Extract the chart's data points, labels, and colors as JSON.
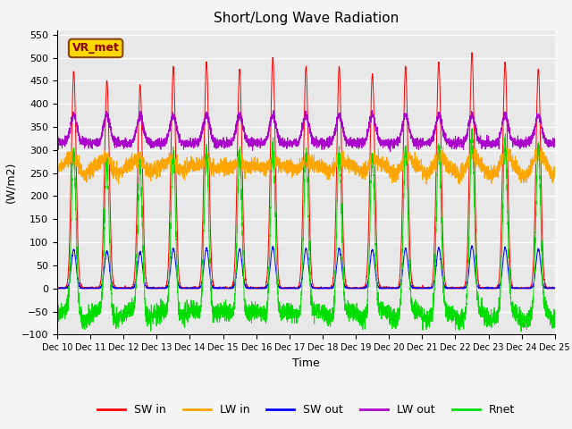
{
  "title": "Short/Long Wave Radiation",
  "xlabel": "Time",
  "ylabel": "(W/m2)",
  "ylim": [
    -100,
    560
  ],
  "yticks": [
    -100,
    -50,
    0,
    50,
    100,
    150,
    200,
    250,
    300,
    350,
    400,
    450,
    500,
    550
  ],
  "start_day": 10,
  "end_day": 25,
  "num_days": 15,
  "pts_per_day": 288,
  "colors": {
    "SW_in": "#FF0000",
    "LW_in": "#FFA500",
    "SW_out": "#0000FF",
    "LW_out": "#AA00CC",
    "Rnet": "#00DD00"
  },
  "SW_in_peaks": [
    470,
    450,
    440,
    480,
    490,
    475,
    500,
    480,
    480,
    465,
    480,
    490,
    510,
    490,
    475
  ],
  "LW_in_base": 255,
  "LW_out_night": 315,
  "albedo": 0.18,
  "annotation_text": "VR_met",
  "bg_color": "#F5F5F5",
  "plot_bg_color": "#E8E8E8",
  "title_fontsize": 11,
  "axis_fontsize": 9,
  "tick_fontsize": 8,
  "xtick_fontsize": 7,
  "legend_fontsize": 9,
  "linewidth": 0.7
}
